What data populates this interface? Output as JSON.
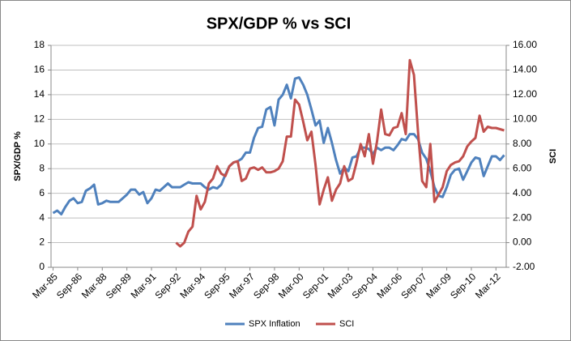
{
  "chart_data": {
    "type": "line",
    "title": "SPX/GDP % vs SCI",
    "y_label": "SPX/GDP %",
    "y2_label": "SCI",
    "categories": [
      "Mar-85",
      null,
      null,
      null,
      null,
      null,
      "Sep-86",
      null,
      null,
      null,
      null,
      null,
      "Mar-88",
      null,
      null,
      null,
      null,
      null,
      "Sep-89",
      null,
      null,
      null,
      null,
      null,
      "Mar-91",
      null,
      null,
      null,
      null,
      null,
      "Sep-92",
      null,
      null,
      null,
      null,
      null,
      "Mar-94",
      null,
      null,
      null,
      null,
      null,
      "Sep-95",
      null,
      null,
      null,
      null,
      null,
      "Mar-97",
      null,
      null,
      null,
      null,
      null,
      "Sep-98",
      null,
      null,
      null,
      null,
      null,
      "Mar-00",
      null,
      null,
      null,
      null,
      null,
      "Sep-01",
      null,
      null,
      null,
      null,
      null,
      "Mar-03",
      null,
      null,
      null,
      null,
      null,
      "Sep-04",
      null,
      null,
      null,
      null,
      null,
      "Mar-06",
      null,
      null,
      null,
      null,
      null,
      "Sep-07",
      null,
      null,
      null,
      null,
      null,
      "Mar-09",
      null,
      null,
      null,
      null,
      null,
      "Sep-10",
      null,
      null,
      null,
      null,
      null,
      "Mar-12",
      null,
      null
    ],
    "series": [
      {
        "name": "SPX Inflation",
        "color": "#4f81bd",
        "values": [
          4.4,
          4.6,
          4.3,
          4.9,
          5.4,
          5.6,
          5.2,
          5.3,
          6.2,
          6.4,
          6.7,
          5.1,
          5.2,
          5.4,
          5.3,
          5.3,
          5.3,
          5.6,
          5.9,
          6.3,
          6.3,
          5.9,
          6.1,
          5.2,
          5.6,
          6.3,
          6.2,
          6.5,
          6.8,
          6.5,
          6.5,
          6.5,
          6.7,
          6.9,
          6.8,
          6.8,
          6.8,
          6.5,
          6.3,
          6.5,
          6.4,
          6.7,
          7.5,
          8.2,
          8.5,
          8.6,
          8.8,
          9.3,
          9.3,
          10.5,
          11.3,
          11.4,
          12.8,
          13.0,
          11.5,
          13.6,
          14.0,
          14.8,
          13.7,
          15.3,
          15.4,
          14.8,
          14.0,
          12.8,
          11.5,
          11.9,
          10.1,
          11.3,
          10.1,
          8.7,
          7.6,
          8.1,
          7.8,
          8.9,
          9.0,
          9.7,
          9.7,
          9.6,
          9.2,
          9.7,
          9.5,
          9.7,
          9.7,
          9.5,
          9.9,
          10.4,
          10.3,
          10.8,
          10.8,
          10.4,
          9.3,
          8.8,
          7.8,
          6.5,
          5.8,
          5.7,
          6.5,
          7.5,
          7.9,
          8.0,
          7.1,
          7.8,
          8.5,
          8.9,
          8.8,
          7.4,
          8.2,
          9.0,
          9.0,
          8.7,
          9.1
        ]
      },
      {
        "name": "SCI",
        "color": "#c0504d",
        "axis": "y2",
        "values": [
          null,
          null,
          null,
          null,
          null,
          null,
          null,
          null,
          null,
          null,
          null,
          null,
          null,
          null,
          null,
          null,
          null,
          null,
          null,
          null,
          null,
          null,
          null,
          null,
          null,
          null,
          null,
          null,
          null,
          null,
          0.0,
          -0.3,
          0.0,
          0.9,
          1.3,
          3.8,
          2.7,
          3.3,
          4.8,
          5.2,
          6.2,
          5.6,
          5.4,
          6.2,
          6.5,
          6.6,
          5.0,
          5.2,
          6.0,
          6.1,
          5.9,
          6.1,
          5.7,
          5.7,
          5.8,
          6.0,
          6.6,
          8.6,
          8.6,
          11.6,
          11.2,
          9.8,
          8.3,
          9.0,
          6.3,
          3.1,
          4.3,
          5.3,
          3.4,
          4.3,
          4.8,
          6.2,
          5.0,
          5.2,
          6.5,
          8.0,
          7.0,
          8.8,
          6.4,
          8.2,
          10.8,
          8.8,
          8.7,
          9.3,
          9.4,
          10.5,
          8.8,
          14.8,
          13.6,
          9.0,
          5.0,
          4.5,
          8.0,
          3.3,
          3.9,
          4.5,
          5.8,
          6.3,
          6.5,
          6.6,
          7.0,
          7.8,
          8.2,
          8.5,
          10.3,
          9.0,
          9.4,
          9.3,
          9.3,
          9.2,
          9.1
        ]
      }
    ],
    "ylim": [
      0,
      18
    ],
    "yticks": [
      0,
      2,
      4,
      6,
      8,
      10,
      12,
      14,
      16,
      18
    ],
    "y2lim": [
      -2,
      16
    ],
    "y2ticks": [
      {
        "value": -2,
        "label": "-2.00"
      },
      {
        "value": 0,
        "label": "0.00"
      },
      {
        "value": 2,
        "label": "2.00"
      },
      {
        "value": 4,
        "label": "4.00"
      },
      {
        "value": 6,
        "label": "6.00"
      },
      {
        "value": 8,
        "label": "8.00"
      },
      {
        "value": 10,
        "label": "10.00"
      },
      {
        "value": 12,
        "label": "12.00"
      },
      {
        "value": 14,
        "label": "14.00"
      },
      {
        "value": 16,
        "label": "16.00"
      }
    ],
    "grid": true,
    "legend": "bottom"
  }
}
